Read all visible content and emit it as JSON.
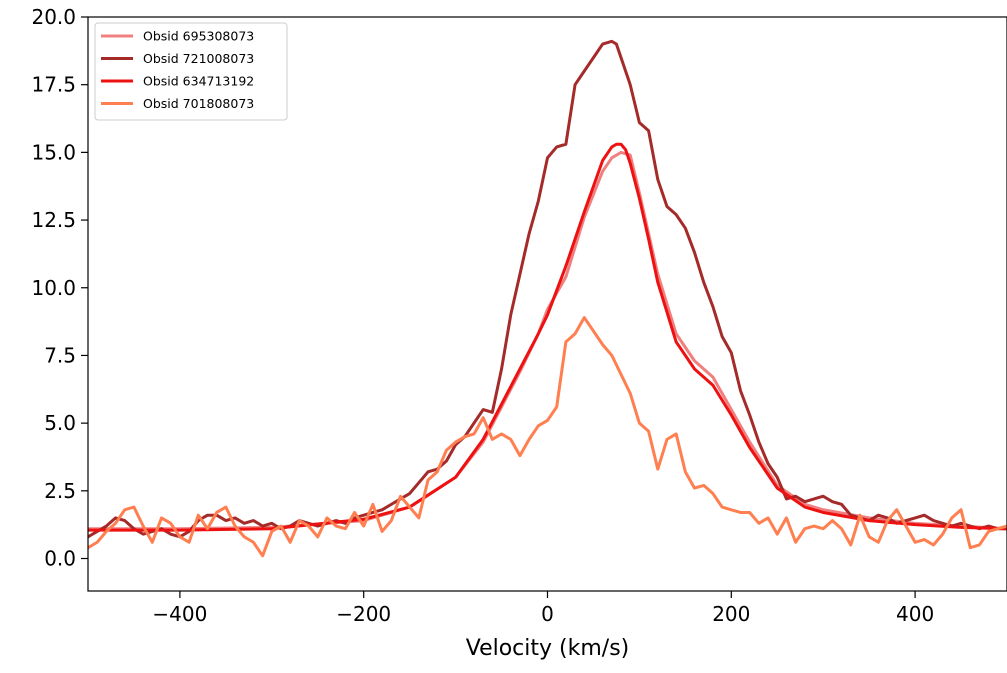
{
  "chart_data": {
    "type": "line",
    "title": "",
    "xlabel": "Velocity (km/s)",
    "ylabel": "",
    "xlim": [
      -500,
      500
    ],
    "ylim": [
      -1.2,
      20.0
    ],
    "xticks": [
      -400,
      -200,
      0,
      200,
      400
    ],
    "xtick_labels": [
      "−400",
      "−200",
      "0",
      "200",
      "400"
    ],
    "yticks": [
      0.0,
      2.5,
      5.0,
      7.5,
      10.0,
      12.5,
      15.0,
      17.5,
      20.0
    ],
    "ytick_labels": [
      "0.0",
      "2.5",
      "5.0",
      "7.5",
      "10.0",
      "12.5",
      "15.0",
      "17.5",
      "20.0"
    ],
    "grid": false,
    "legend_position": "top-left",
    "series": [
      {
        "name": "Obsid 695308073",
        "color": "#f08080",
        "x": [
          -500,
          -400,
          -300,
          -200,
          -150,
          -100,
          -70,
          -50,
          -30,
          -10,
          0,
          20,
          40,
          60,
          70,
          80,
          90,
          100,
          110,
          120,
          140,
          160,
          180,
          200,
          220,
          250,
          280,
          300,
          350,
          400,
          450,
          500
        ],
        "y": [
          1.1,
          1.1,
          1.15,
          1.4,
          1.9,
          3.0,
          4.3,
          5.6,
          6.9,
          8.3,
          9.2,
          10.4,
          12.6,
          14.3,
          14.8,
          15.0,
          14.9,
          13.5,
          12.0,
          10.5,
          8.3,
          7.3,
          6.7,
          5.5,
          4.3,
          2.7,
          2.0,
          1.8,
          1.5,
          1.3,
          1.2,
          1.1
        ]
      },
      {
        "name": "Obsid 721008073",
        "color": "#a52a2a",
        "x": [
          -500,
          -490,
          -480,
          -470,
          -460,
          -450,
          -440,
          -430,
          -420,
          -410,
          -400,
          -390,
          -380,
          -370,
          -360,
          -350,
          -340,
          -330,
          -320,
          -310,
          -300,
          -290,
          -280,
          -270,
          -260,
          -250,
          -240,
          -230,
          -220,
          -210,
          -200,
          -190,
          -180,
          -170,
          -160,
          -150,
          -140,
          -130,
          -120,
          -110,
          -100,
          -90,
          -80,
          -70,
          -60,
          -50,
          -40,
          -30,
          -20,
          -10,
          0,
          10,
          20,
          30,
          40,
          50,
          60,
          70,
          75,
          80,
          85,
          90,
          100,
          110,
          120,
          130,
          140,
          150,
          160,
          170,
          180,
          190,
          200,
          210,
          220,
          230,
          240,
          250,
          260,
          270,
          280,
          290,
          300,
          310,
          320,
          330,
          340,
          350,
          360,
          370,
          380,
          390,
          400,
          410,
          420,
          430,
          440,
          450,
          460,
          470,
          480,
          490,
          500
        ],
        "y": [
          0.8,
          1.0,
          1.2,
          1.5,
          1.4,
          1.1,
          0.9,
          1.0,
          1.1,
          0.9,
          0.8,
          1.0,
          1.4,
          1.6,
          1.6,
          1.4,
          1.5,
          1.3,
          1.4,
          1.2,
          1.3,
          1.1,
          1.2,
          1.4,
          1.3,
          1.2,
          1.3,
          1.4,
          1.3,
          1.5,
          1.6,
          1.7,
          1.8,
          2.0,
          2.2,
          2.4,
          2.8,
          3.2,
          3.3,
          3.6,
          4.2,
          4.5,
          5.0,
          5.5,
          5.4,
          7.0,
          9.0,
          10.5,
          12.0,
          13.2,
          14.8,
          15.2,
          15.3,
          17.5,
          18.0,
          18.5,
          19.0,
          19.1,
          19.0,
          18.5,
          18.0,
          17.5,
          16.1,
          15.8,
          14.0,
          13.0,
          12.7,
          12.2,
          11.3,
          10.2,
          9.3,
          8.2,
          7.6,
          6.2,
          5.3,
          4.3,
          3.5,
          3.0,
          2.2,
          2.3,
          2.1,
          2.2,
          2.3,
          2.1,
          2.0,
          1.6,
          1.5,
          1.4,
          1.6,
          1.5,
          1.3,
          1.4,
          1.5,
          1.6,
          1.4,
          1.3,
          1.2,
          1.3,
          1.2,
          1.1,
          1.2,
          1.1,
          1.1
        ]
      },
      {
        "name": "Obsid 634713192",
        "color": "#ee1111",
        "x": [
          -500,
          -400,
          -300,
          -200,
          -150,
          -100,
          -70,
          -50,
          -30,
          -10,
          0,
          20,
          40,
          60,
          70,
          75,
          80,
          85,
          90,
          100,
          110,
          120,
          140,
          160,
          180,
          200,
          220,
          250,
          280,
          300,
          350,
          400,
          450,
          500
        ],
        "y": [
          1.05,
          1.05,
          1.1,
          1.45,
          1.9,
          3.0,
          4.4,
          5.7,
          7.0,
          8.3,
          9.0,
          10.8,
          12.8,
          14.7,
          15.2,
          15.3,
          15.3,
          15.1,
          14.6,
          13.3,
          11.8,
          10.2,
          8.0,
          7.0,
          6.4,
          5.3,
          4.1,
          2.6,
          1.9,
          1.7,
          1.4,
          1.25,
          1.15,
          1.1
        ]
      },
      {
        "name": "Obsid 701808073",
        "color": "#ff7f50",
        "x": [
          -500,
          -490,
          -480,
          -470,
          -460,
          -450,
          -440,
          -430,
          -420,
          -410,
          -400,
          -390,
          -380,
          -370,
          -360,
          -350,
          -340,
          -330,
          -320,
          -310,
          -300,
          -290,
          -280,
          -270,
          -260,
          -250,
          -240,
          -230,
          -220,
          -210,
          -200,
          -190,
          -180,
          -170,
          -160,
          -150,
          -140,
          -130,
          -120,
          -110,
          -100,
          -90,
          -80,
          -70,
          -60,
          -50,
          -40,
          -30,
          -20,
          -10,
          0,
          10,
          20,
          30,
          40,
          50,
          60,
          70,
          80,
          90,
          100,
          110,
          120,
          130,
          140,
          150,
          160,
          170,
          180,
          190,
          200,
          210,
          220,
          230,
          240,
          250,
          260,
          270,
          280,
          290,
          300,
          310,
          320,
          330,
          340,
          350,
          360,
          370,
          380,
          390,
          400,
          410,
          420,
          430,
          440,
          450,
          460,
          470,
          480,
          490,
          500
        ],
        "y": [
          0.4,
          0.6,
          1.0,
          1.3,
          1.8,
          1.9,
          1.2,
          0.6,
          1.5,
          1.3,
          0.8,
          0.6,
          1.6,
          1.1,
          1.7,
          1.9,
          1.2,
          0.8,
          0.6,
          0.1,
          1.0,
          1.2,
          0.6,
          1.4,
          1.2,
          0.8,
          1.5,
          1.2,
          1.1,
          1.7,
          1.2,
          2.0,
          1.0,
          1.4,
          2.3,
          1.9,
          1.5,
          2.9,
          3.2,
          4.0,
          4.3,
          4.5,
          4.6,
          5.2,
          4.4,
          4.6,
          4.4,
          3.8,
          4.4,
          4.9,
          5.1,
          5.6,
          8.0,
          8.3,
          8.9,
          8.4,
          7.9,
          7.5,
          6.8,
          6.1,
          5.0,
          4.7,
          3.3,
          4.4,
          4.6,
          3.2,
          2.6,
          2.7,
          2.4,
          1.9,
          1.8,
          1.7,
          1.7,
          1.3,
          1.5,
          0.9,
          1.5,
          0.6,
          1.1,
          1.2,
          1.1,
          1.4,
          1.1,
          0.5,
          1.6,
          0.8,
          0.6,
          1.4,
          1.8,
          1.2,
          0.6,
          0.7,
          0.5,
          0.9,
          1.5,
          1.8,
          0.4,
          0.5,
          1.0,
          1.1,
          1.2
        ]
      }
    ]
  }
}
